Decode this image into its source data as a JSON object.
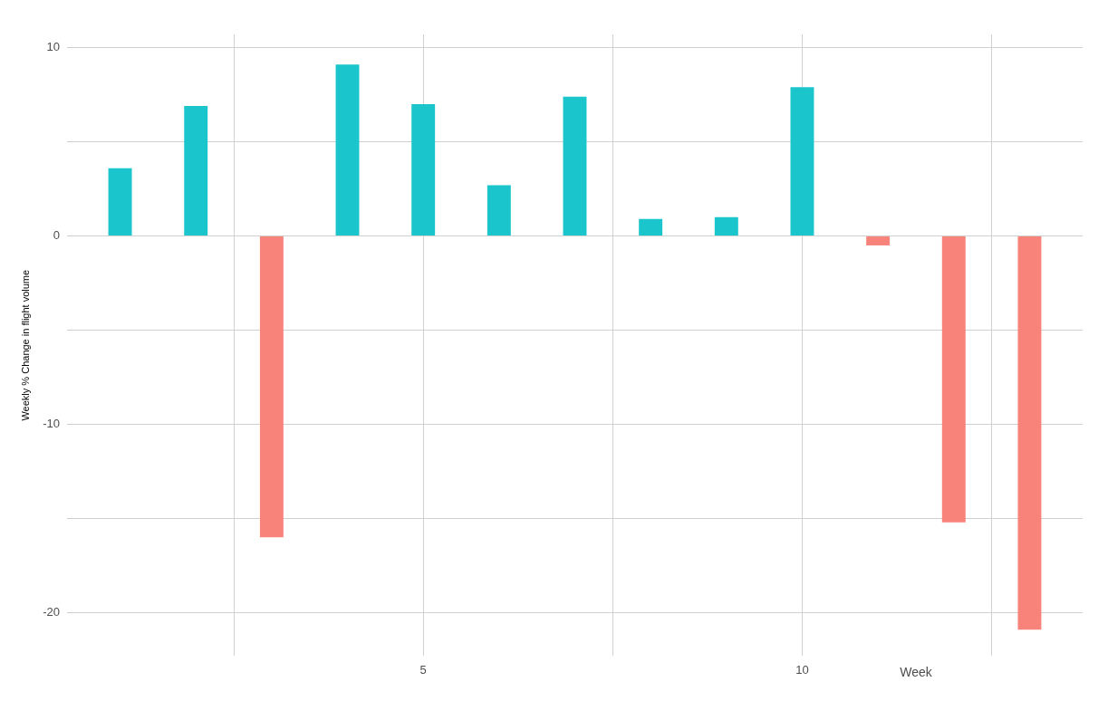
{
  "chart_data": {
    "type": "bar",
    "xlabel": "Week",
    "ylabel": "Weekly % Change in flight volume",
    "x": [
      1,
      2,
      3,
      4,
      5,
      6,
      7,
      8,
      9,
      10,
      11,
      12,
      13
    ],
    "values": [
      3.6,
      6.9,
      -16.0,
      9.1,
      7.0,
      2.7,
      7.4,
      0.9,
      1.0,
      7.9,
      -0.5,
      -15.2,
      -20.9
    ],
    "colors": [
      "#1bc5cc",
      "#1bc5cc",
      "#f8837a",
      "#1bc5cc",
      "#1bc5cc",
      "#1bc5cc",
      "#1bc5cc",
      "#1bc5cc",
      "#1bc5cc",
      "#1bc5cc",
      "#f8837a",
      "#f8837a",
      "#f8837a"
    ],
    "xlim": [
      0.3,
      13.7
    ],
    "xticks": [
      {
        "value": 2.5,
        "label": null
      },
      5,
      {
        "value": 7.5,
        "label": null
      },
      10,
      {
        "value": 12.5,
        "label": null
      }
    ],
    "ylim": [
      -22.3,
      10.7
    ],
    "yticks": [
      -20,
      {
        "value": -15,
        "label": null
      },
      -10,
      {
        "value": -5,
        "label": null
      },
      0,
      {
        "value": 5,
        "label": null
      },
      10
    ],
    "grid": true,
    "legend": false
  }
}
